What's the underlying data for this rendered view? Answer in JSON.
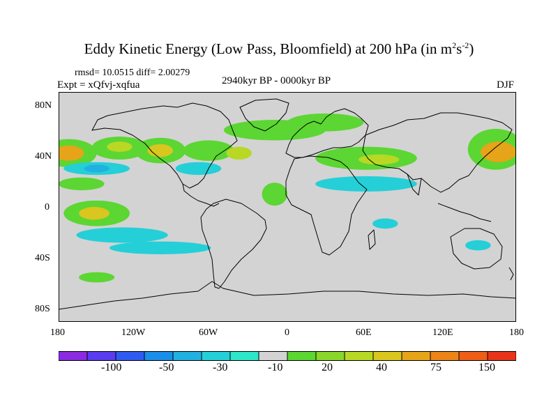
{
  "title": {
    "main": "Eddy Kinetic Energy (Low Pass, Bloomfield) at 200 hPa (in m",
    "sup1": "2",
    "mid": "s",
    "sup2": "-2",
    "end": ")"
  },
  "stats": "rmsd= 10.0515 diff= 2.00279",
  "experiment": "Expt = xQfvj-xqfua",
  "period": "2940kyr BP - 0000kyr BP",
  "season": "DJF",
  "y_axis": {
    "labels": [
      "80N",
      "40N",
      "0",
      "40S",
      "80S"
    ],
    "values": [
      80,
      40,
      0,
      -40,
      -80
    ]
  },
  "x_axis": {
    "labels": [
      "180",
      "120W",
      "60W",
      "0",
      "60E",
      "120E",
      "180"
    ],
    "values": [
      -180,
      -120,
      -60,
      0,
      60,
      120,
      180
    ]
  },
  "colorbar": {
    "colors": [
      "#8a2be2",
      "#5a3cf0",
      "#2f5bf0",
      "#1a8ee8",
      "#21b1e0",
      "#25cfd8",
      "#2ee6c8",
      "#d3d3d3",
      "#5cd632",
      "#8ad62a",
      "#b8d824",
      "#d9c61e",
      "#e6a418",
      "#ec8418",
      "#ee5e16",
      "#e8341a"
    ],
    "labels": [
      "-100",
      "-50",
      "-30",
      "-10",
      "20",
      "40",
      "75",
      "150"
    ]
  },
  "anomalies": [
    {
      "lon": -172,
      "lat": 42,
      "rx": 22,
      "ry": 11,
      "color": "#5cd632"
    },
    {
      "lon": -172,
      "lat": 42,
      "rx": 12,
      "ry": 6,
      "color": "#e6a418"
    },
    {
      "lon": -132,
      "lat": 46,
      "rx": 22,
      "ry": 9,
      "color": "#5cd632"
    },
    {
      "lon": -132,
      "lat": 47,
      "rx": 10,
      "ry": 4,
      "color": "#b8d824"
    },
    {
      "lon": -100,
      "lat": 44,
      "rx": 20,
      "ry": 10,
      "color": "#5cd632"
    },
    {
      "lon": -100,
      "lat": 44,
      "rx": 10,
      "ry": 5,
      "color": "#d9c61e"
    },
    {
      "lon": -62,
      "lat": 44,
      "rx": 20,
      "ry": 8,
      "color": "#5cd632"
    },
    {
      "lon": -38,
      "lat": 42,
      "rx": 10,
      "ry": 5,
      "color": "#b8d824"
    },
    {
      "lon": -10,
      "lat": 60,
      "rx": 40,
      "ry": 8,
      "color": "#5cd632"
    },
    {
      "lon": 30,
      "lat": 66,
      "rx": 30,
      "ry": 7,
      "color": "#5cd632"
    },
    {
      "lon": 62,
      "lat": 38,
      "rx": 40,
      "ry": 9,
      "color": "#5cd632"
    },
    {
      "lon": 72,
      "lat": 37,
      "rx": 16,
      "ry": 4,
      "color": "#b8d824"
    },
    {
      "lon": 164,
      "lat": 45,
      "rx": 22,
      "ry": 16,
      "color": "#5cd632"
    },
    {
      "lon": 166,
      "lat": 43,
      "rx": 14,
      "ry": 8,
      "color": "#e6a418"
    },
    {
      "lon": -150,
      "lat": 30,
      "rx": 26,
      "ry": 5,
      "color": "#25cfd8"
    },
    {
      "lon": -150,
      "lat": 30,
      "rx": 10,
      "ry": 3,
      "color": "#21b1e0"
    },
    {
      "lon": -70,
      "lat": 30,
      "rx": 18,
      "ry": 5,
      "color": "#25cfd8"
    },
    {
      "lon": 62,
      "lat": 18,
      "rx": 40,
      "ry": 6,
      "color": "#25cfd8"
    },
    {
      "lon": -162,
      "lat": 18,
      "rx": 18,
      "ry": 5,
      "color": "#5cd632"
    },
    {
      "lon": -10,
      "lat": 10,
      "rx": 10,
      "ry": 9,
      "color": "#5cd632"
    },
    {
      "lon": -150,
      "lat": -5,
      "rx": 26,
      "ry": 10,
      "color": "#5cd632"
    },
    {
      "lon": -152,
      "lat": -5,
      "rx": 12,
      "ry": 5,
      "color": "#d9c61e"
    },
    {
      "lon": -130,
      "lat": -22,
      "rx": 36,
      "ry": 6,
      "color": "#25cfd8"
    },
    {
      "lon": -100,
      "lat": -32,
      "rx": 40,
      "ry": 5,
      "color": "#25cfd8"
    },
    {
      "lon": 77,
      "lat": -13,
      "rx": 10,
      "ry": 4,
      "color": "#25cfd8"
    },
    {
      "lon": 150,
      "lat": -30,
      "rx": 10,
      "ry": 4,
      "color": "#25cfd8"
    },
    {
      "lon": -150,
      "lat": -55,
      "rx": 14,
      "ry": 4,
      "color": "#5cd632"
    }
  ]
}
